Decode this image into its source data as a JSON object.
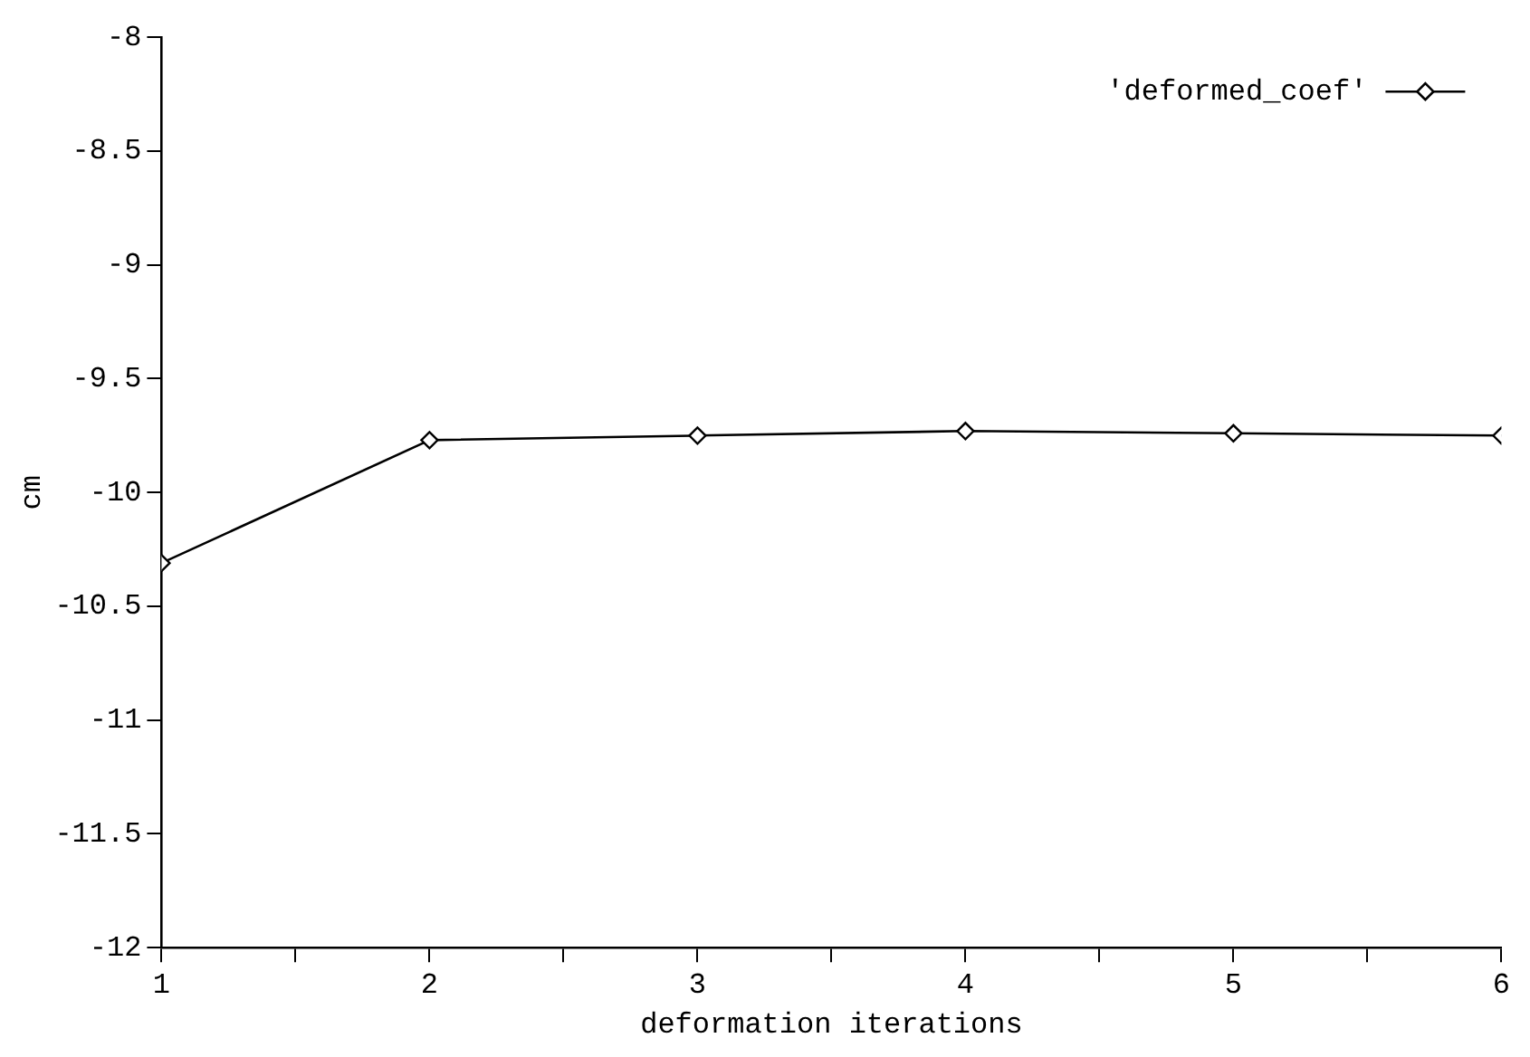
{
  "chart_data": {
    "type": "line",
    "xlabel": "deformation iterations",
    "ylabel": "cm",
    "x": [
      1,
      2,
      3,
      4,
      5,
      6
    ],
    "series": [
      {
        "name": "'deformed_coef'",
        "color": "#000000",
        "values": [
          -10.31,
          -9.77,
          -9.75,
          -9.73,
          -9.74,
          -9.75
        ]
      }
    ],
    "xlim": [
      1,
      6
    ],
    "xticks": [
      1,
      {
        "value": 1.5,
        "label": null
      },
      2,
      {
        "value": 2.5,
        "label": null
      },
      3,
      {
        "value": 3.5,
        "label": null
      },
      4,
      {
        "value": 4.5,
        "label": null
      },
      5,
      {
        "value": 5.5,
        "label": null
      },
      6
    ],
    "ylim": [
      -12,
      -8
    ],
    "yticks": [
      -12,
      -11.5,
      -11,
      -10.5,
      -10,
      -9.5,
      -9,
      -8.5,
      -8
    ],
    "marker": "diamond",
    "line_style": "solid",
    "legend": "top right",
    "grid": false
  }
}
